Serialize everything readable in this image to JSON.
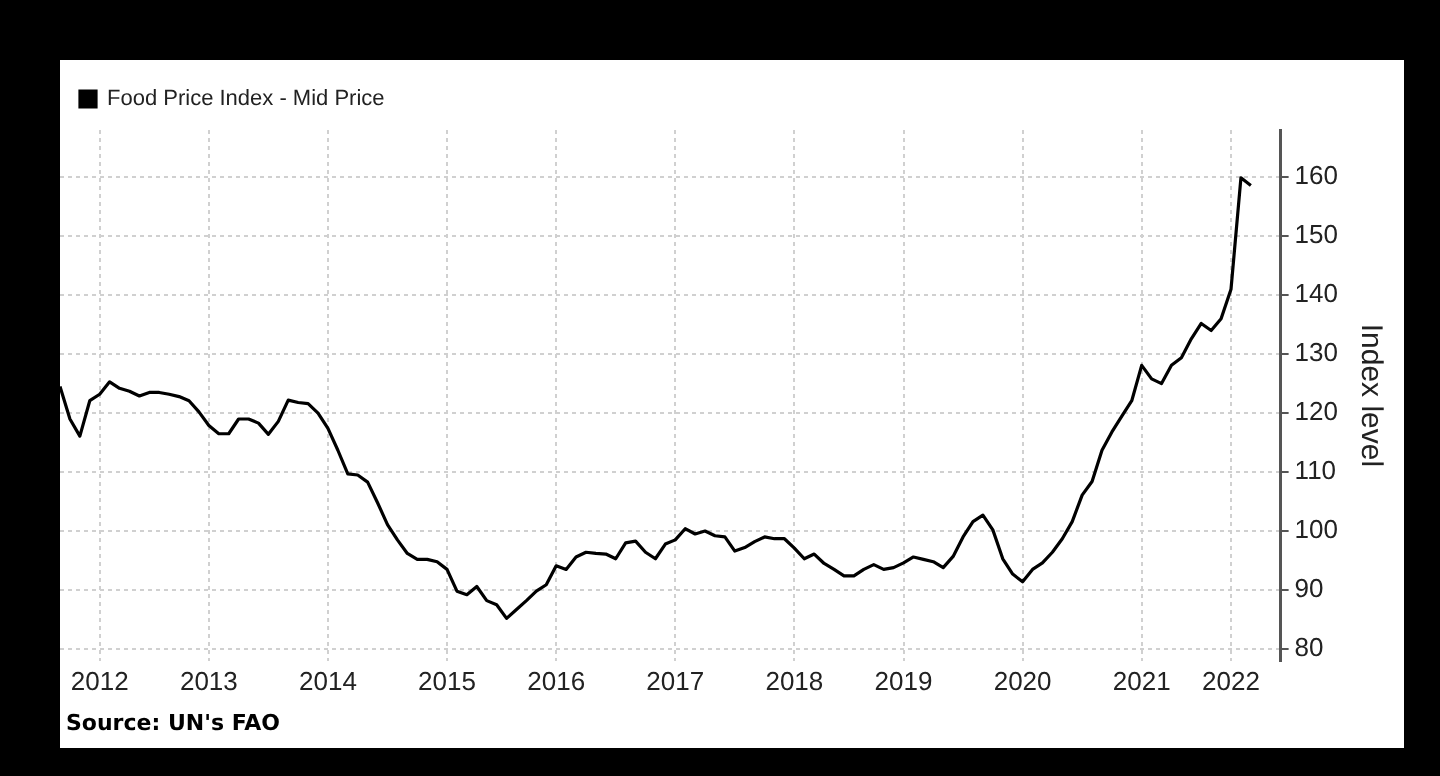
{
  "chart_data": {
    "type": "line",
    "ylabel": "Index level",
    "annotations": [
      "Source: UN's FAO"
    ],
    "legend": "top left",
    "grid": true,
    "xlim": [
      "2012-05",
      "2022-08"
    ],
    "xticks": [
      {
        "value": "2012-09",
        "label": "2012"
      },
      {
        "value": "2013-08",
        "label": "2013"
      },
      {
        "value": "2014-08",
        "label": "2014"
      },
      {
        "value": "2015-08",
        "label": "2015"
      },
      {
        "value": "2016-07",
        "label": "2016"
      },
      {
        "value": "2017-07",
        "label": "2017"
      },
      {
        "value": "2018-07",
        "label": "2018"
      },
      {
        "value": "2019-06",
        "label": "2019"
      },
      {
        "value": "2020-06",
        "label": "2020"
      },
      {
        "value": "2021-06",
        "label": "2021"
      },
      {
        "value": "2022-03",
        "label": "2022"
      }
    ],
    "ylim": [
      78,
      168
    ],
    "yticks": [
      80,
      90,
      100,
      110,
      120,
      130,
      140,
      150,
      160
    ],
    "series": [
      {
        "name": "Food Price Index - Mid Price",
        "color": "#000000",
        "x": [
          "2012-05",
          "2012-06",
          "2012-07",
          "2012-08",
          "2012-09",
          "2012-10",
          "2012-11",
          "2012-12",
          "2013-01",
          "2013-02",
          "2013-03",
          "2013-04",
          "2013-05",
          "2013-06",
          "2013-07",
          "2013-08",
          "2013-09",
          "2013-10",
          "2013-11",
          "2013-12",
          "2014-01",
          "2014-02",
          "2014-03",
          "2014-04",
          "2014-05",
          "2014-06",
          "2014-07",
          "2014-08",
          "2014-09",
          "2014-10",
          "2014-11",
          "2014-12",
          "2015-01",
          "2015-02",
          "2015-03",
          "2015-04",
          "2015-05",
          "2015-06",
          "2015-07",
          "2015-08",
          "2015-09",
          "2015-10",
          "2015-11",
          "2015-12",
          "2016-01",
          "2016-02",
          "2016-03",
          "2016-04",
          "2016-05",
          "2016-06",
          "2016-07",
          "2016-08",
          "2016-09",
          "2016-10",
          "2016-11",
          "2016-12",
          "2017-01",
          "2017-02",
          "2017-03",
          "2017-04",
          "2017-05",
          "2017-06",
          "2017-07",
          "2017-08",
          "2017-09",
          "2017-10",
          "2017-11",
          "2017-12",
          "2018-01",
          "2018-02",
          "2018-03",
          "2018-04",
          "2018-05",
          "2018-06",
          "2018-07",
          "2018-08",
          "2018-09",
          "2018-10",
          "2018-11",
          "2018-12",
          "2019-01",
          "2019-02",
          "2019-03",
          "2019-04",
          "2019-05",
          "2019-06",
          "2019-07",
          "2019-08",
          "2019-09",
          "2019-10",
          "2019-11",
          "2019-12",
          "2020-01",
          "2020-02",
          "2020-03",
          "2020-04",
          "2020-05",
          "2020-06",
          "2020-07",
          "2020-08",
          "2020-09",
          "2020-10",
          "2020-11",
          "2020-12",
          "2021-01",
          "2021-02",
          "2021-03",
          "2021-04",
          "2021-05",
          "2021-06",
          "2021-07",
          "2021-08",
          "2021-09",
          "2021-10",
          "2021-11",
          "2021-12",
          "2022-01",
          "2022-02",
          "2022-03",
          "2022-04",
          "2022-05"
        ],
        "values": [
          124.5,
          119,
          116.1,
          122.1,
          123.2,
          125.3,
          124.2,
          123.7,
          122.9,
          123.5,
          123.5,
          123.2,
          122.8,
          122.1,
          120.2,
          117.9,
          116.5,
          116.5,
          119,
          119,
          118.3,
          116.4,
          118.6,
          122.2,
          121.8,
          121.6,
          120,
          117.4,
          113.7,
          109.7,
          109.5,
          108.3,
          104.8,
          101.1,
          98.5,
          96.2,
          95.2,
          95.2,
          94.8,
          93.5,
          89.8,
          89.2,
          90.6,
          88.2,
          87.5,
          85.2,
          86.7,
          88.2,
          89.8,
          90.9,
          94.1,
          93.5,
          95.6,
          96.4,
          96.2,
          96.1,
          95.3,
          98,
          98.3,
          96.4,
          95.3,
          97.8,
          98.5,
          100.4,
          99.5,
          100,
          99.2,
          99,
          96.6,
          97.2,
          98.2,
          99,
          98.7,
          98.7,
          97.1,
          95.3,
          96.1,
          94.5,
          93.5,
          92.4,
          92.4,
          93.5,
          94.3,
          93.5,
          93.8,
          94.6,
          95.6,
          95.2,
          94.8,
          93.8,
          95.7,
          99,
          101.6,
          102.7,
          100.2,
          95.3,
          92.7,
          91.4,
          93.5,
          94.6,
          96.4,
          98.7,
          101.6,
          106.1,
          108.4,
          113.7,
          116.8,
          119.5,
          122.1,
          128.1,
          125.8,
          125,
          128.1,
          129.4,
          132.6,
          135.2,
          134,
          136,
          141,
          159.9,
          158.6
        ]
      }
    ]
  }
}
